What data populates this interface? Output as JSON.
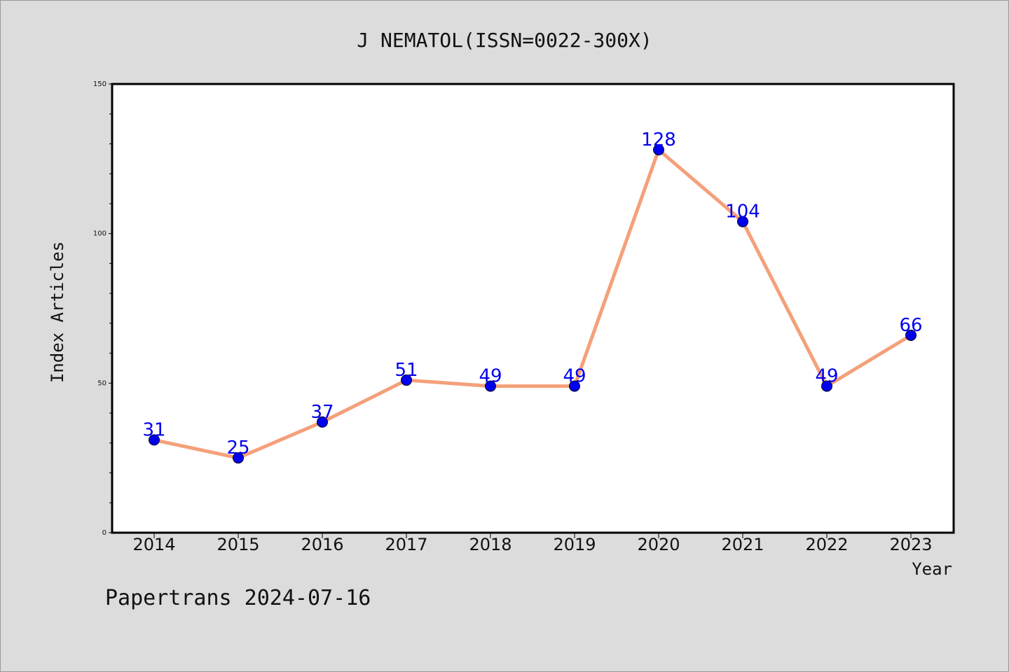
{
  "chart_data": {
    "type": "line",
    "title": "J NEMATOL(ISSN=0022-300X)",
    "xlabel": "Year",
    "ylabel": "Index Articles",
    "categories": [
      "2014",
      "2015",
      "2016",
      "2017",
      "2018",
      "2019",
      "2020",
      "2021",
      "2022",
      "2023"
    ],
    "series": [
      {
        "values": [
          31,
          25,
          37,
          51,
          49,
          49,
          128,
          104,
          49,
          66
        ],
        "line_color": "#f4a07a",
        "marker_color": "#0000ee",
        "label_color": "#0000ee"
      }
    ],
    "ylim": [
      0,
      150
    ],
    "yticks_major": [
      0,
      50,
      100,
      150
    ],
    "ytick_minor_step": 10,
    "grid": false,
    "data_labels": true,
    "plot_background": "#ffffff",
    "figure_background": "#dcdcdc"
  },
  "footer": {
    "text": "Papertrans 2024-07-16"
  }
}
